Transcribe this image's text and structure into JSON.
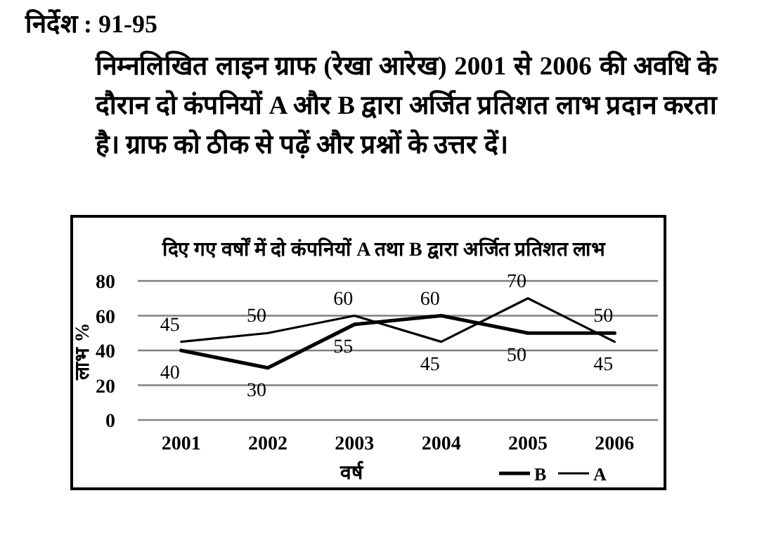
{
  "chart_data": {
    "type": "line",
    "title": "दिए गए वर्षों में दो कंपनियों A तथा B द्वारा अर्जित प्रतिशत लाभ",
    "xlabel": "वर्ष",
    "ylabel": "लाभ %",
    "annotations": [
      "निर्देश : 91-95",
      "निम्नलिखित लाइन ग्राफ (रेखा आरेख) 2001 से 2006 की अवधि के दौरान दो कंपनियों A और B द्वारा अर्जित प्रतिशत लाभ प्रदान करता है। ग्राफ को ठीक से पढ़ें और प्रश्नों के उत्तर दें।"
    ],
    "categories": [
      "2001",
      "2002",
      "2003",
      "2004",
      "2005",
      "2006"
    ],
    "series": [
      {
        "name": "B",
        "color": "#000000",
        "values": [
          40,
          30,
          55,
          60,
          50,
          50
        ]
      },
      {
        "name": "A",
        "color": "#000000",
        "values": [
          45,
          50,
          60,
          45,
          70,
          45
        ]
      }
    ],
    "ylim": [
      0,
      80
    ],
    "yticks": [
      0,
      20,
      40,
      60,
      80
    ],
    "grid": "y",
    "legend": "bottom right",
    "data_labels": true,
    "marker": "none",
    "line_style": "solid"
  }
}
